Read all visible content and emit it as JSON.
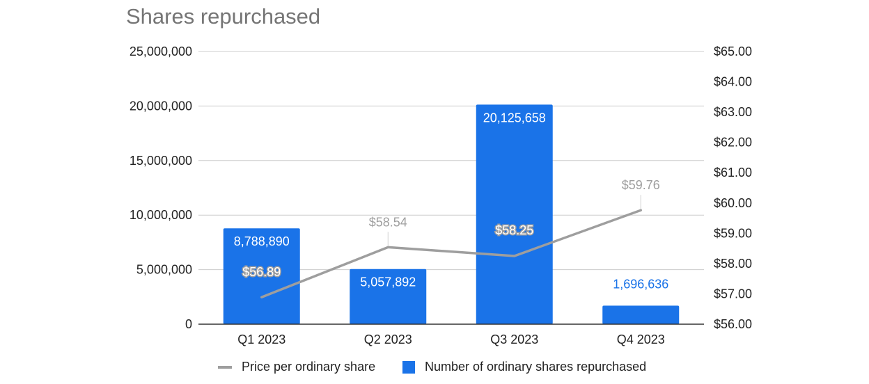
{
  "title": "Shares repurchased",
  "chart_data": {
    "type": "bar",
    "title": "Shares repurchased",
    "categories": [
      "Q1 2023",
      "Q2 2023",
      "Q3 2023",
      "Q4 2023"
    ],
    "series": [
      {
        "name": "Number of ordinary shares repurchased",
        "type": "bar",
        "axis": "left",
        "values": [
          8788890,
          5057892,
          20125658,
          1696636
        ],
        "labels": [
          "8,788,890",
          "5,057,892",
          "20,125,658",
          "1,696,636"
        ],
        "color": "#1a73e8"
      },
      {
        "name": "Price per ordinary share",
        "type": "line",
        "axis": "right",
        "values": [
          56.89,
          58.54,
          58.25,
          59.76
        ],
        "labels": [
          "$56.89",
          "$58.54",
          "$58.25",
          "$59.76"
        ],
        "color": "#9e9e9e"
      }
    ],
    "y_left": {
      "min": 0,
      "max": 25000000,
      "ticks": [
        0,
        5000000,
        10000000,
        15000000,
        20000000,
        25000000
      ],
      "tick_labels": [
        "0",
        "5,000,000",
        "10,000,000",
        "15,000,000",
        "20,000,000",
        "25,000,000"
      ]
    },
    "y_right": {
      "min": 56,
      "max": 65,
      "ticks": [
        56,
        57,
        58,
        59,
        60,
        61,
        62,
        63,
        64,
        65
      ],
      "tick_labels": [
        "$56.00",
        "$57.00",
        "$58.00",
        "$59.00",
        "$60.00",
        "$61.00",
        "$62.00",
        "$63.00",
        "$64.00",
        "$65.00"
      ]
    },
    "grid": true,
    "legend_position": "bottom",
    "legend": [
      "Price per ordinary share",
      "Number of ordinary shares repurchased"
    ]
  }
}
